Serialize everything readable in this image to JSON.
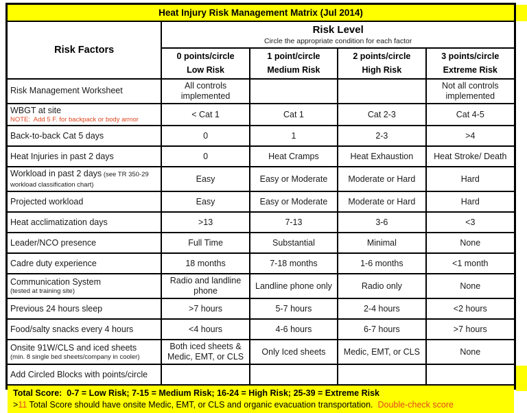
{
  "title": "Heat Injury Risk Management Matrix (Jul 2014)",
  "header": {
    "risk_factors_label": "Risk Factors",
    "risk_level_label": "Risk Level",
    "risk_level_subtitle": "Circle the appropriate condition for each factor",
    "columns": [
      {
        "points": "0 points/circle",
        "risk": "Low Risk"
      },
      {
        "points": "1 point/circle",
        "risk": "Medium Risk"
      },
      {
        "points": "2 points/circle",
        "risk": "High Risk"
      },
      {
        "points": "3 points/circle",
        "risk": "Extreme Risk"
      }
    ]
  },
  "rows": [
    {
      "factor": "Risk Management Worksheet",
      "cells": [
        "All controls implemented",
        "",
        "",
        "Not all controls implemented"
      ]
    },
    {
      "factor": "WBGT at site",
      "note_red": "NOTE:  Add 5 F. for backpack or body armor",
      "cells": [
        "< Cat 1",
        "Cat 1",
        "Cat 2-3",
        "Cat 4-5"
      ]
    },
    {
      "factor": "Back-to-back Cat 5 days",
      "cells": [
        "0",
        "1",
        "2-3",
        ">4"
      ]
    },
    {
      "factor": "Heat Injuries in past 2 days",
      "cells": [
        "0",
        "Heat Cramps",
        "Heat Exhaustion",
        "Heat Stroke/ Death"
      ]
    },
    {
      "factor": "Workload in past 2 days",
      "inline_small": "(see TR 350-29 workload classification chart)",
      "cells": [
        "Easy",
        "Easy or Moderate",
        "Moderate or Hard",
        "Hard"
      ]
    },
    {
      "factor": "Projected workload",
      "cells": [
        "Easy",
        "Easy or Moderate",
        "Moderate or Hard",
        "Hard"
      ]
    },
    {
      "factor": "Heat acclimatization days",
      "cells": [
        ">13",
        "7-13",
        "3-6",
        "<3"
      ]
    },
    {
      "factor": "Leader/NCO presence",
      "cells": [
        "Full Time",
        "Substantial",
        "Minimal",
        "None"
      ]
    },
    {
      "factor": "Cadre duty experience",
      "cells": [
        "18 months",
        "7-18 months",
        "1-6 months",
        "<1 month"
      ]
    },
    {
      "factor": "Communication System",
      "sub_small": "(tested at training site)",
      "cells": [
        "Radio and landline phone",
        "Landline phone only",
        "Radio only",
        "None"
      ]
    },
    {
      "factor": "Previous 24 hours sleep",
      "cells": [
        ">7 hours",
        "5-7 hours",
        "2-4 hours",
        "<2 hours"
      ]
    },
    {
      "factor": "Food/salty snacks every 4 hours",
      "cells": [
        "<4 hours",
        "4-6 hours",
        "6-7 hours",
        ">7 hours"
      ]
    },
    {
      "factor": "Onsite 91W/CLS and iced sheets",
      "sub_small": "(min. 8 single bed sheets/company in cooler)",
      "cells": [
        "Both iced sheets & Medic, EMT, or CLS",
        "Only Iced sheets",
        "Medic, EMT, or CLS",
        "None"
      ]
    },
    {
      "factor": "Add Circled Blocks with points/circle",
      "cells": [
        "",
        "",
        "",
        ""
      ]
    }
  ],
  "footer": {
    "line1": "Total Score:  0-7 = Low Risk; 7-15 = Medium Risk; 16-24 = High Risk; 25-39 = Extreme Risk",
    "line2_prefix": ">",
    "line2_score": "11",
    "line2_text": " Total Score should have onsite Medic, EMT, or CLS and organic evacuation transportation.  ",
    "line2_red": "Double-check score"
  },
  "colors": {
    "band_yellow": "#ffff00",
    "alert_red": "#e2461f",
    "border_black": "#000000",
    "text": "#1a1a1a"
  }
}
